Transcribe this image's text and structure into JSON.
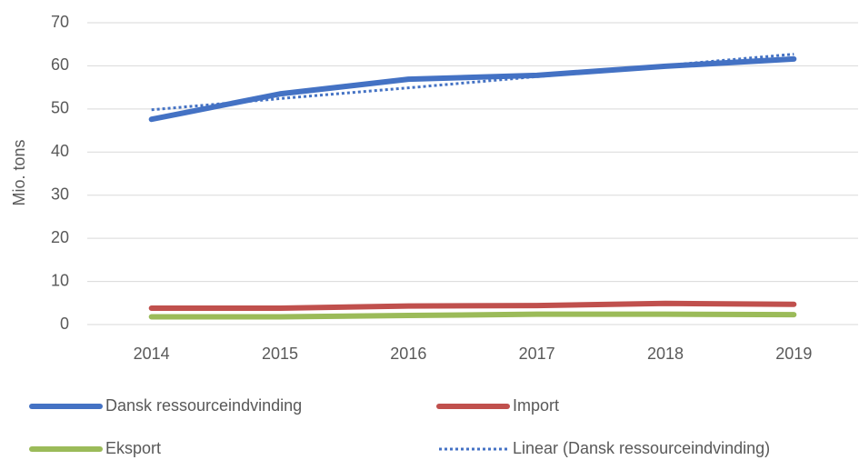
{
  "chart_data": {
    "type": "line",
    "y_label": "Mio. tons",
    "categories": [
      "2014",
      "2015",
      "2016",
      "2017",
      "2018",
      "2019"
    ],
    "series": [
      {
        "name": "Dansk ressourceindvinding",
        "color": "#4472c4",
        "style": "solid",
        "values": [
          47.6,
          53.5,
          56.9,
          57.8,
          59.9,
          61.6
        ]
      },
      {
        "name": "Import",
        "color": "#c0504d",
        "style": "solid",
        "values": [
          3.8,
          3.8,
          4.3,
          4.4,
          4.9,
          4.7
        ]
      },
      {
        "name": "Eksport",
        "color": "#9bbb59",
        "style": "solid",
        "values": [
          1.8,
          1.8,
          2.1,
          2.4,
          2.4,
          2.3
        ]
      },
      {
        "name": "Linear (Dansk ressourceindvinding)",
        "color": "#4472c4",
        "style": "dotted",
        "values": [
          49.8,
          52.4,
          54.9,
          57.5,
          60.1,
          62.7
        ]
      }
    ],
    "ylim": [
      0,
      70
    ],
    "yticks": [
      0,
      10,
      20,
      30,
      40,
      50,
      60,
      70
    ],
    "grid": true,
    "legend": "bottom"
  }
}
